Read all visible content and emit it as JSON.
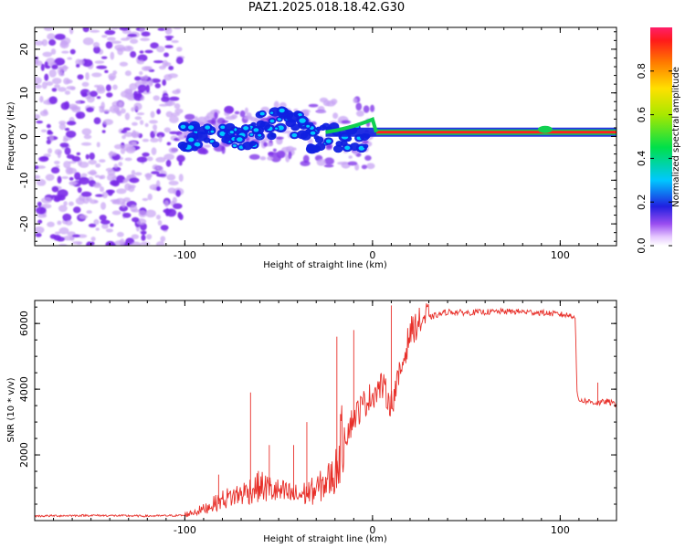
{
  "title": "PAZ1.2025.018.18.42.G30",
  "colors": {
    "snr_line": "#e8302a",
    "spectrum_core": "#ff2020",
    "spectrum_mid": "#10d050",
    "spectrum_low": "#1020e0",
    "spectrum_faint": "#c7a4f4",
    "spectrum_dot": "#7a2ae8",
    "frame": "#000000"
  },
  "chart_data": [
    {
      "type": "heatmap",
      "name": "spectrogram",
      "title": "",
      "xlabel": "Height of straight line (km)",
      "ylabel": "Frequency (Hz)",
      "xlim": [
        -180,
        130
      ],
      "ylim": [
        -25,
        25
      ],
      "x_ticks": [
        -100,
        0,
        100
      ],
      "y_ticks": [
        -20,
        -10,
        0,
        10,
        20
      ],
      "features": {
        "noise_region_x": [
          -180,
          -102
        ],
        "blob_region_x": [
          -102,
          0
        ],
        "carrier_frequency_hz": 1,
        "carrier_start_x": 2,
        "carrier_bump_x": 92
      },
      "colorbar": {
        "label": "Normalized spectral amplitude",
        "ticks": [
          0.0,
          0.2,
          0.4,
          0.6,
          0.8
        ],
        "range": [
          0,
          1
        ],
        "icon": "rainbow-colorbar"
      }
    },
    {
      "type": "line",
      "name": "snr",
      "title": "",
      "xlabel": "Height of straight line (km)",
      "ylabel": "SNR (10 * v/v)",
      "xlim": [
        -180,
        130
      ],
      "ylim": [
        0,
        6700
      ],
      "x_ticks": [
        -100,
        0,
        100
      ],
      "y_ticks": [
        2000,
        4000,
        6000
      ],
      "series": [
        {
          "name": "SNR",
          "x": [
            -180,
            -150,
            -120,
            -100,
            -90,
            -80,
            -70,
            -60,
            -50,
            -40,
            -30,
            -20,
            -15,
            -10,
            -5,
            0,
            5,
            10,
            15,
            20,
            25,
            30,
            40,
            50,
            60,
            70,
            80,
            90,
            100,
            108,
            109,
            110,
            115,
            120,
            125,
            130
          ],
          "y": [
            130,
            150,
            130,
            150,
            300,
            550,
            700,
            900,
            750,
            650,
            800,
            1200,
            2400,
            3000,
            3400,
            3700,
            4000,
            3400,
            4400,
            5600,
            5900,
            6150,
            6330,
            6300,
            6320,
            6340,
            6330,
            6300,
            6250,
            6200,
            3800,
            3650,
            3600,
            3550,
            3600,
            3500
          ],
          "spikes": [
            {
              "x": -82,
              "y": 1400
            },
            {
              "x": -65,
              "y": 3900
            },
            {
              "x": -55,
              "y": 2300
            },
            {
              "x": -42,
              "y": 2300
            },
            {
              "x": -35,
              "y": 3000
            },
            {
              "x": -19,
              "y": 5600
            },
            {
              "x": -10,
              "y": 5800
            },
            {
              "x": 10,
              "y": 6550
            },
            {
              "x": 120,
              "y": 4200
            }
          ]
        }
      ]
    }
  ]
}
